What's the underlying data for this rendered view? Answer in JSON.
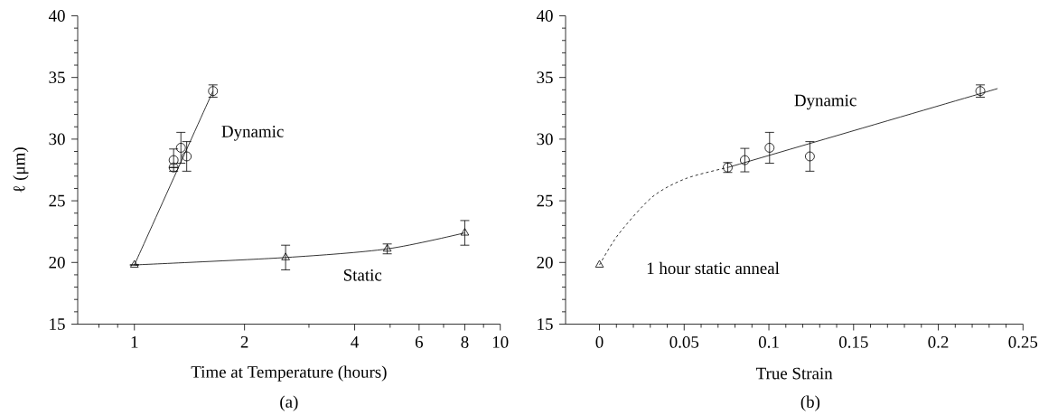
{
  "chart_data": [
    {
      "type": "scatter",
      "log": "x",
      "ylabel": "ℓ (μm)",
      "xlabel": "Time at Temperature (hours)",
      "xlim": [
        0.7,
        10
      ],
      "ylim": [
        15,
        40
      ],
      "xticks": [
        {
          "value": 0.8,
          "label": null
        },
        {
          "value": 0.9,
          "label": null
        },
        1,
        2,
        {
          "value": 3,
          "label": null
        },
        4,
        {
          "value": 5,
          "label": null
        },
        6,
        {
          "value": 7,
          "label": null
        },
        8,
        {
          "value": 9,
          "label": null
        },
        10
      ],
      "yticks": [
        15,
        {
          "value": 16,
          "label": null
        },
        {
          "value": 17,
          "label": null
        },
        {
          "value": 18,
          "label": null
        },
        {
          "value": 19,
          "label": null
        },
        20,
        {
          "value": 21,
          "label": null
        },
        {
          "value": 22,
          "label": null
        },
        {
          "value": 23,
          "label": null
        },
        {
          "value": 24,
          "label": null
        },
        25,
        {
          "value": 26,
          "label": null
        },
        {
          "value": 27,
          "label": null
        },
        {
          "value": 28,
          "label": null
        },
        {
          "value": 29,
          "label": null
        },
        30,
        {
          "value": 31,
          "label": null
        },
        {
          "value": 32,
          "label": null
        },
        {
          "value": 33,
          "label": null
        },
        {
          "value": 34,
          "label": null
        },
        35,
        {
          "value": 36,
          "label": null
        },
        {
          "value": 37,
          "label": null
        },
        {
          "value": 38,
          "label": null
        },
        {
          "value": 39,
          "label": null
        },
        40
      ],
      "series": [
        {
          "type": "line",
          "color": "#000000",
          "marker": "none",
          "line_style": "solid",
          "x": [
            1,
            1.64
          ],
          "values": [
            19.8,
            33.9
          ]
        },
        {
          "type": "line",
          "color": "#000000",
          "marker": "none",
          "line_style": "solid",
          "x": [
            1,
            2.59,
            4.91,
            8
          ],
          "values": [
            19.8,
            20.4,
            21.1,
            22.4
          ]
        },
        {
          "type": "scatter",
          "color": "#000000",
          "marker": "circle",
          "x": [
            1.28,
            1.28,
            1.34,
            1.39,
            1.64
          ],
          "values": [
            27.7,
            28.3,
            29.3,
            28.6,
            33.9
          ],
          "errors": [
            null,
            0.9,
            1.25,
            1.2,
            0.5
          ]
        },
        {
          "type": "scatter",
          "color": "#000000",
          "marker": "triangle",
          "x": [
            1,
            2.59,
            4.91,
            8
          ],
          "values": [
            19.8,
            20.4,
            21.1,
            22.4
          ],
          "errors": [
            null,
            1.0,
            0.4,
            1.0
          ]
        }
      ],
      "annotations": [
        "Dynamic",
        "Static",
        "(a)"
      ]
    },
    {
      "type": "scatter",
      "xlabel": "True Strain",
      "xlim": [
        -0.02,
        0.25
      ],
      "ylim": [
        15,
        40
      ],
      "xticks": [
        0,
        {
          "value": 0.01,
          "label": null
        },
        {
          "value": 0.02,
          "label": null
        },
        {
          "value": 0.03,
          "label": null
        },
        {
          "value": 0.04,
          "label": null
        },
        0.05,
        {
          "value": 0.06,
          "label": null
        },
        {
          "value": 0.07,
          "label": null
        },
        {
          "value": 0.08,
          "label": null
        },
        {
          "value": 0.09,
          "label": null
        },
        0.1,
        {
          "value": 0.11,
          "label": null
        },
        {
          "value": 0.12,
          "label": null
        },
        {
          "value": 0.13,
          "label": null
        },
        {
          "value": 0.14,
          "label": null
        },
        0.15,
        {
          "value": 0.16,
          "label": null
        },
        {
          "value": 0.17,
          "label": null
        },
        {
          "value": 0.18,
          "label": null
        },
        {
          "value": 0.19,
          "label": null
        },
        0.2,
        {
          "value": 0.21,
          "label": null
        },
        {
          "value": 0.22,
          "label": null
        },
        {
          "value": 0.23,
          "label": null
        },
        {
          "value": 0.24,
          "label": null
        },
        0.25
      ],
      "yticks": [
        15,
        {
          "value": 16,
          "label": null
        },
        {
          "value": 17,
          "label": null
        },
        {
          "value": 18,
          "label": null
        },
        {
          "value": 19,
          "label": null
        },
        20,
        {
          "value": 21,
          "label": null
        },
        {
          "value": 22,
          "label": null
        },
        {
          "value": 23,
          "label": null
        },
        {
          "value": 24,
          "label": null
        },
        25,
        {
          "value": 26,
          "label": null
        },
        {
          "value": 27,
          "label": null
        },
        {
          "value": 28,
          "label": null
        },
        {
          "value": 29,
          "label": null
        },
        30,
        {
          "value": 31,
          "label": null
        },
        {
          "value": 32,
          "label": null
        },
        {
          "value": 33,
          "label": null
        },
        {
          "value": 34,
          "label": null
        },
        35,
        {
          "value": 36,
          "label": null
        },
        {
          "value": 37,
          "label": null
        },
        {
          "value": 38,
          "label": null
        },
        {
          "value": 39,
          "label": null
        },
        40
      ],
      "series": [
        {
          "type": "line",
          "color": "#000000",
          "marker": "none",
          "line_style": "dashed",
          "x": [
            0,
            0.0113,
            0.0311,
            0.0509,
            0.0757
          ],
          "values": [
            19.8,
            22.3,
            25.3,
            26.8,
            27.7
          ]
        },
        {
          "type": "line",
          "color": "#000000",
          "marker": "none",
          "line_style": "solid",
          "x": [
            0.0757,
            0.235
          ],
          "values": [
            27.7,
            34.1
          ]
        },
        {
          "type": "scatter",
          "color": "#000000",
          "marker": "circle",
          "x": [
            0.0757,
            0.0858,
            0.1004,
            0.1242,
            0.2248
          ],
          "values": [
            27.7,
            28.3,
            29.3,
            28.6,
            33.9
          ],
          "errors": [
            0.4,
            0.95,
            1.25,
            1.2,
            0.5
          ]
        },
        {
          "type": "scatter",
          "color": "#000000",
          "marker": "triangle",
          "x": [
            0
          ],
          "values": [
            19.8
          ]
        }
      ],
      "annotations": [
        "Dynamic",
        "1 hour static anneal",
        "(b)"
      ]
    }
  ]
}
